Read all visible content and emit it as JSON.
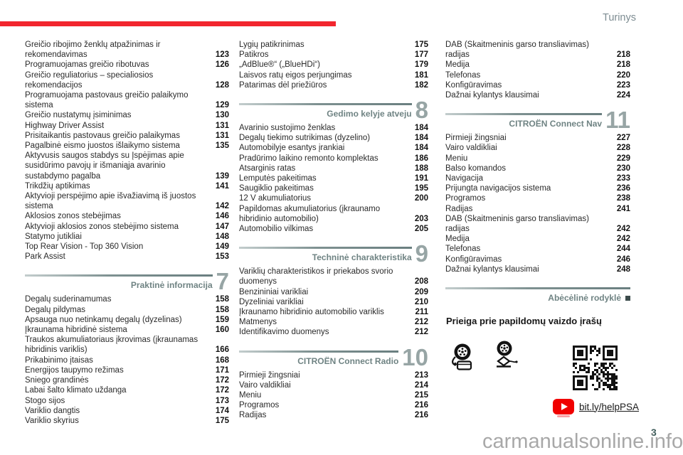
{
  "page": {
    "header": "Turinys",
    "number": "3",
    "watermark": "carmanualsonline.info"
  },
  "colors": {
    "accent_red": "#f2262e",
    "section_teal": "#6f8383",
    "chapter_number_gray": "#97a5a5",
    "header_gray": "#7d8c92"
  },
  "columns": [
    {
      "blocks": [
        {
          "type": "entry",
          "label": "Greičio ribojimo ženklų atpažinimas ir rekomendavimas",
          "page": "123"
        },
        {
          "type": "entry",
          "label": "Programuojamas greičio ribotuvas",
          "page": "126"
        },
        {
          "type": "entry",
          "label": "Greičio reguliatorius – specialiosios rekomendacijos",
          "page": "128"
        },
        {
          "type": "entry",
          "label": "Programuojama pastovaus greičio palaikymo sistema",
          "page": "129"
        },
        {
          "type": "entry",
          "label": "Greičio nustatymų įsiminimas",
          "page": "130"
        },
        {
          "type": "entry",
          "label": "Highway Driver Assist",
          "page": "131"
        },
        {
          "type": "entry",
          "label": "Prisitaikantis pastovaus greičio palaikymas",
          "page": "131"
        },
        {
          "type": "entry",
          "label": "Pagalbinė eismo juostos išlaikymo sistema",
          "page": "135"
        },
        {
          "type": "entry",
          "label": "Aktyvusis saugos stabdys su Įspėjimas apie susidūrimo pavojų ir išmaniąja avarinio sustabdymo pagalba",
          "page": "139"
        },
        {
          "type": "entry",
          "label": "Trikdžių aptikimas",
          "page": "141"
        },
        {
          "type": "entry",
          "label": "Aktyvioji perspėjimo apie išvažiavimą iš juostos sistema",
          "page": "142"
        },
        {
          "type": "entry",
          "label": "Aklosios zonos stebėjimas",
          "page": "146"
        },
        {
          "type": "entry",
          "label": "Aktyvioji aklosios zonos stebėjimo sistema",
          "page": "147"
        },
        {
          "type": "entry",
          "label": "Statymo jutikliai",
          "page": "148"
        },
        {
          "type": "entry",
          "label": "Top Rear Vision - Top 360 Vision",
          "page": "149"
        },
        {
          "type": "entry",
          "label": "Park Assist",
          "page": "153"
        },
        {
          "type": "section",
          "title": "Praktinė informacija",
          "number": "7"
        },
        {
          "type": "entry",
          "label": "Degalų suderinamumas",
          "page": "158"
        },
        {
          "type": "entry",
          "label": "Degalų pildymas",
          "page": "158"
        },
        {
          "type": "entry",
          "label": "Apsauga nuo netinkamų degalų (dyzelinas)",
          "page": "159"
        },
        {
          "type": "entry",
          "label": "Įkraunama hibridinė sistema",
          "page": "160"
        },
        {
          "type": "entry",
          "label": "Traukos akumuliatoriaus įkrovimas (įkraunamas hibridinis variklis)",
          "page": "166"
        },
        {
          "type": "entry",
          "label": "Prikabinimo įtaisas",
          "page": "168"
        },
        {
          "type": "entry",
          "label": "Energijos taupymo režimas",
          "page": "171"
        },
        {
          "type": "entry",
          "label": "Sniego grandinės",
          "page": "172"
        },
        {
          "type": "entry",
          "label": "Labai šalto klimato uždanga",
          "page": "172"
        },
        {
          "type": "entry",
          "label": "Stogo sijos",
          "page": "173"
        },
        {
          "type": "entry",
          "label": "Variklio dangtis",
          "page": "174"
        },
        {
          "type": "entry",
          "label": "Variklio skyrius",
          "page": "175"
        }
      ]
    },
    {
      "blocks": [
        {
          "type": "entry",
          "label": "Lygių patikrinimas",
          "page": "175"
        },
        {
          "type": "entry",
          "label": "Patikros",
          "page": "177"
        },
        {
          "type": "entry",
          "label": "„AdBlue®“ („BlueHDi“)",
          "page": "179"
        },
        {
          "type": "entry",
          "label": "Laisvos ratų eigos perjungimas",
          "page": "181"
        },
        {
          "type": "entry",
          "label": "Patarimas dėl priežiūros",
          "page": "182"
        },
        {
          "type": "section",
          "title": "Gedimo kelyje atveju",
          "number": "8"
        },
        {
          "type": "entry",
          "label": "Avarinio sustojimo ženklas",
          "page": "184"
        },
        {
          "type": "entry",
          "label": "Degalų tiekimo sutrikimas (dyzelino)",
          "page": "184"
        },
        {
          "type": "entry",
          "label": "Automobilyje esantys įrankiai",
          "page": "184"
        },
        {
          "type": "entry",
          "label": "Pradūrimo laikino remonto komplektas",
          "page": "186"
        },
        {
          "type": "entry",
          "label": "Atsarginis ratas",
          "page": "188"
        },
        {
          "type": "entry",
          "label": "Lemputės pakeitimas",
          "page": "191"
        },
        {
          "type": "entry",
          "label": "Saugiklio pakeitimas",
          "page": "195"
        },
        {
          "type": "entry",
          "label": "12 V akumuliatorius",
          "page": "200"
        },
        {
          "type": "entry",
          "label": "Papildomas akumuliatorius (įkraunamo hibridinio automobilio)",
          "page": "203"
        },
        {
          "type": "entry",
          "label": "Automobilio vilkimas",
          "page": "205"
        },
        {
          "type": "section",
          "title": "Techninė charakteristika",
          "number": "9"
        },
        {
          "type": "entry",
          "label": "Variklių charakteristikos ir priekabos svorio duomenys",
          "page": "208"
        },
        {
          "type": "entry",
          "label": "Benzininiai varikliai",
          "page": "209"
        },
        {
          "type": "entry",
          "label": "Dyzeliniai varikliai",
          "page": "210"
        },
        {
          "type": "entry",
          "label": "Įkraunamo hibridinio automobilio variklis",
          "page": "211"
        },
        {
          "type": "entry",
          "label": "Matmenys",
          "page": "212"
        },
        {
          "type": "entry",
          "label": "Identifikavimo duomenys",
          "page": "212"
        },
        {
          "type": "section",
          "title": "CITROËN Connect Radio",
          "number": "10"
        },
        {
          "type": "entry",
          "label": "Pirmieji žingsniai",
          "page": "213"
        },
        {
          "type": "entry",
          "label": "Vairo valdikliai",
          "page": "214"
        },
        {
          "type": "entry",
          "label": "Meniu",
          "page": "215"
        },
        {
          "type": "entry",
          "label": "Programos",
          "page": "216"
        },
        {
          "type": "entry",
          "label": "Radijas",
          "page": "216"
        }
      ]
    },
    {
      "blocks": [
        {
          "type": "entry",
          "label": "DAB (Skaitmeninis garso transliavimas) radijas",
          "page": "218"
        },
        {
          "type": "entry",
          "label": "Medija",
          "page": "218"
        },
        {
          "type": "entry",
          "label": "Telefonas",
          "page": "220"
        },
        {
          "type": "entry",
          "label": "Konfigūravimas",
          "page": "223"
        },
        {
          "type": "entry",
          "label": "Dažnai kylantys klausimai",
          "page": "224"
        },
        {
          "type": "section",
          "title": "CITROËN Connect Nav",
          "number": "11"
        },
        {
          "type": "entry",
          "label": "Pirmieji žingsniai",
          "page": "227"
        },
        {
          "type": "entry",
          "label": "Vairo valdikliai",
          "page": "228"
        },
        {
          "type": "entry",
          "label": "Meniu",
          "page": "229"
        },
        {
          "type": "entry",
          "label": "Balso komandos",
          "page": "230"
        },
        {
          "type": "entry",
          "label": "Navigacija",
          "page": "233"
        },
        {
          "type": "entry",
          "label": "Prijungta navigacijos sistema",
          "page": "236"
        },
        {
          "type": "entry",
          "label": "Programos",
          "page": "238"
        },
        {
          "type": "entry",
          "label": "Radijas",
          "page": "241"
        },
        {
          "type": "entry",
          "label": "DAB (Skaitmeninis garso transliavimas) radijas",
          "page": "242"
        },
        {
          "type": "entry",
          "label": "Medija",
          "page": "242"
        },
        {
          "type": "entry",
          "label": "Telefonas",
          "page": "244"
        },
        {
          "type": "entry",
          "label": "Konfigūravimas",
          "page": "246"
        },
        {
          "type": "entry",
          "label": "Dažnai kylantys klausimai",
          "page": "248"
        },
        {
          "type": "index",
          "title": "Abėcėlinė rodyklė"
        }
      ]
    }
  ],
  "extras": {
    "heading": "Prieiga prie papildomų vaizdo įrašų",
    "icons": [
      "tire-repair-kit-icon",
      "scissor-jack-icon",
      "qr-code"
    ],
    "video_link": {
      "icon": "youtube-play-icon",
      "label": "bit.ly/helpPSA"
    }
  }
}
